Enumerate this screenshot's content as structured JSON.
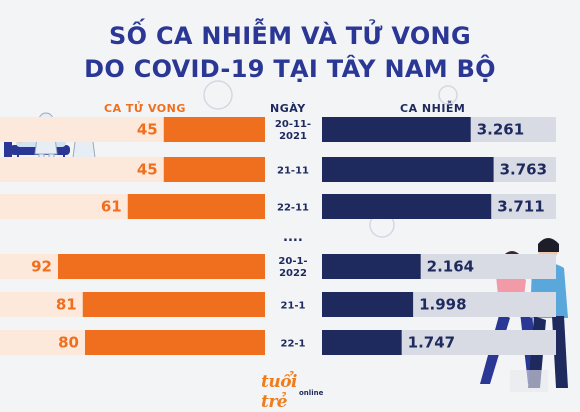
{
  "title": {
    "line1": "SỐ CA NHIỄM VÀ TỬ VONG",
    "line2": "DO COVID-19 TẠI TÂY NAM BỘ"
  },
  "headers": {
    "deaths": "CA TỬ VONG",
    "date": "NGÀY",
    "cases": "CA NHIỄM"
  },
  "ellipsis": "....",
  "logo": {
    "main": "tuổi trẻ",
    "sub": "online"
  },
  "colors": {
    "title": "#2b3795",
    "deaths_bar": "#ef6f1f",
    "deaths_track": "#fde9dc",
    "deaths_text": "#ef6f1f",
    "cases_bar": "#1e2a5e",
    "cases_track": "#d8dae4",
    "cases_text": "#1e2a5e"
  },
  "chart_data": {
    "type": "bar",
    "layout": "diverging-horizontal",
    "categories": [
      "20-11-2021",
      "21-11",
      "22-11",
      "20-1-2022",
      "21-1",
      "22-1"
    ],
    "series": [
      {
        "name": "CA TỬ VONG",
        "values": [
          45,
          45,
          61,
          92,
          81,
          80
        ],
        "labels": [
          "45",
          "45",
          "61",
          "92",
          "81",
          "80"
        ]
      },
      {
        "name": "CA NHIỄM",
        "values": [
          3261,
          3763,
          3711,
          2164,
          1998,
          1747
        ],
        "labels": [
          "3.261",
          "3.763",
          "3.711",
          "2.164",
          "1.998",
          "1.747"
        ]
      }
    ],
    "date_labels": [
      [
        "20-11-",
        "2021"
      ],
      [
        "21-11"
      ],
      [
        "22-11"
      ],
      [
        "20-1-",
        "2022"
      ],
      [
        "21-1"
      ],
      [
        "22-1"
      ]
    ],
    "ellipsis_after_index": 2,
    "legend": "top",
    "grid": false
  }
}
